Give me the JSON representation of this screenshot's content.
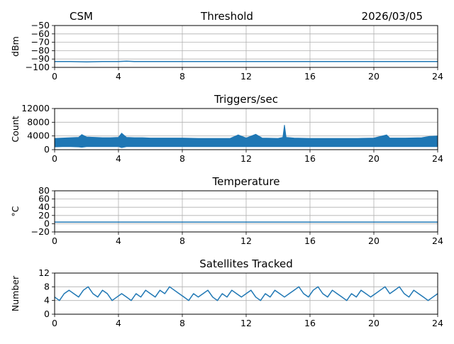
{
  "header": {
    "left": "CSM",
    "center": "Threshold",
    "right": "2026/03/05"
  },
  "chart_data": [
    {
      "type": "line",
      "title": "",
      "ylabel": "dBm",
      "xlabel": "",
      "xlim": [
        0,
        24
      ],
      "ylim": [
        -100,
        -50
      ],
      "xticks": [
        0,
        4,
        8,
        12,
        16,
        20,
        24
      ],
      "yticks": [
        -50,
        -60,
        -70,
        -80,
        -90,
        -100
      ],
      "ytick_labels": [
        "−50",
        "−60",
        "−70",
        "−80",
        "−90",
        "−100"
      ],
      "grid": true,
      "color": "#1f77b4",
      "series": [
        {
          "x": [
            0,
            1,
            2,
            3,
            4,
            4.5,
            5,
            6,
            7,
            8,
            9,
            10,
            11,
            12,
            13,
            14,
            15,
            16,
            17,
            18,
            19,
            20,
            21,
            22,
            23,
            24
          ],
          "values": [
            -93,
            -93,
            -93.5,
            -93,
            -93,
            -92.5,
            -93,
            -93,
            -93,
            -93,
            -93,
            -93,
            -93,
            -93,
            -93,
            -93,
            -93,
            -93,
            -93,
            -93,
            -93,
            -93,
            -93,
            -93,
            -93,
            -93
          ]
        }
      ]
    },
    {
      "type": "line",
      "title": "Triggers/sec",
      "ylabel": "Count",
      "xlabel": "",
      "xlim": [
        0,
        24
      ],
      "ylim": [
        0,
        12000
      ],
      "xticks": [
        0,
        4,
        8,
        12,
        16,
        20,
        24
      ],
      "yticks": [
        0,
        4000,
        8000,
        12000
      ],
      "ytick_labels": [
        "0",
        "4000",
        "8000",
        "12000"
      ],
      "grid": true,
      "color": "#1f77b4",
      "series": [
        {
          "x": [
            0,
            0.5,
            1,
            1.5,
            1.7,
            2,
            2.5,
            3,
            3.5,
            4,
            4.2,
            4.5,
            5,
            5.5,
            6,
            7,
            8,
            9,
            10,
            11,
            11.5,
            12,
            12.6,
            13,
            14,
            14.3,
            14.4,
            14.5,
            15,
            16,
            17,
            18,
            19,
            20,
            20.8,
            21,
            22,
            23,
            23.5,
            24
          ],
          "values": [
            3300,
            3400,
            3500,
            3600,
            4400,
            3700,
            3600,
            3500,
            3500,
            3600,
            4800,
            3600,
            3500,
            3500,
            3400,
            3400,
            3400,
            3300,
            3300,
            3300,
            4300,
            3400,
            4500,
            3400,
            3300,
            3600,
            7200,
            3600,
            3400,
            3300,
            3300,
            3300,
            3300,
            3400,
            4300,
            3400,
            3400,
            3500,
            3900,
            4000
          ],
          "low": [
            800,
            900,
            900,
            800,
            700,
            900,
            900,
            900,
            900,
            900,
            600,
            900,
            900,
            900,
            900,
            900,
            900,
            900,
            900,
            900,
            900,
            900,
            900,
            900,
            900,
            900,
            900,
            900,
            900,
            900,
            900,
            900,
            900,
            900,
            900,
            900,
            900,
            900,
            900,
            900
          ]
        }
      ]
    },
    {
      "type": "line",
      "title": "Temperature",
      "ylabel": "°C",
      "xlabel": "",
      "xlim": [
        0,
        24
      ],
      "ylim": [
        -20,
        80
      ],
      "xticks": [
        0,
        4,
        8,
        12,
        16,
        20,
        24
      ],
      "yticks": [
        -20,
        0,
        20,
        40,
        60,
        80
      ],
      "ytick_labels": [
        "−20",
        "0",
        "20",
        "40",
        "60",
        "80"
      ],
      "grid": true,
      "color": "#1f77b4",
      "series": [
        {
          "x": [
            0,
            24
          ],
          "values": [
            4,
            4
          ]
        }
      ]
    },
    {
      "type": "line",
      "title": "Satellites Tracked",
      "ylabel": "Number",
      "xlabel": "",
      "xlim": [
        0,
        24
      ],
      "ylim": [
        0,
        12
      ],
      "xticks": [
        0,
        4,
        8,
        12,
        16,
        20,
        24
      ],
      "yticks": [
        0,
        4,
        8,
        12
      ],
      "ytick_labels": [
        "0",
        "4",
        "8",
        "12"
      ],
      "grid": true,
      "color": "#1f77b4",
      "series": [
        {
          "x": [
            0,
            0.3,
            0.6,
            0.9,
            1.2,
            1.5,
            1.8,
            2.1,
            2.4,
            2.7,
            3.0,
            3.3,
            3.6,
            3.9,
            4.2,
            4.5,
            4.8,
            5.1,
            5.4,
            5.7,
            6.0,
            6.3,
            6.6,
            6.9,
            7.2,
            7.5,
            7.8,
            8.1,
            8.4,
            8.7,
            9.0,
            9.3,
            9.6,
            9.9,
            10.2,
            10.5,
            10.8,
            11.1,
            11.4,
            11.7,
            12.0,
            12.3,
            12.6,
            12.9,
            13.2,
            13.5,
            13.8,
            14.1,
            14.4,
            14.7,
            15.0,
            15.3,
            15.6,
            15.9,
            16.2,
            16.5,
            16.8,
            17.1,
            17.4,
            17.7,
            18.0,
            18.3,
            18.6,
            18.9,
            19.2,
            19.5,
            19.8,
            20.1,
            20.4,
            20.7,
            21.0,
            21.3,
            21.6,
            21.9,
            22.2,
            22.5,
            22.8,
            23.1,
            23.4,
            23.7,
            24.0
          ],
          "values": [
            5,
            4,
            6,
            7,
            6,
            5,
            7,
            8,
            6,
            5,
            7,
            6,
            4,
            5,
            6,
            5,
            4,
            6,
            5,
            7,
            6,
            5,
            7,
            6,
            8,
            7,
            6,
            5,
            4,
            6,
            5,
            6,
            7,
            5,
            4,
            6,
            5,
            7,
            6,
            5,
            6,
            7,
            5,
            4,
            6,
            5,
            7,
            6,
            5,
            6,
            7,
            8,
            6,
            5,
            7,
            8,
            6,
            5,
            7,
            6,
            5,
            4,
            6,
            5,
            7,
            6,
            5,
            6,
            7,
            8,
            6,
            7,
            8,
            6,
            5,
            7,
            6,
            5,
            4,
            5,
            6
          ]
        }
      ]
    }
  ]
}
